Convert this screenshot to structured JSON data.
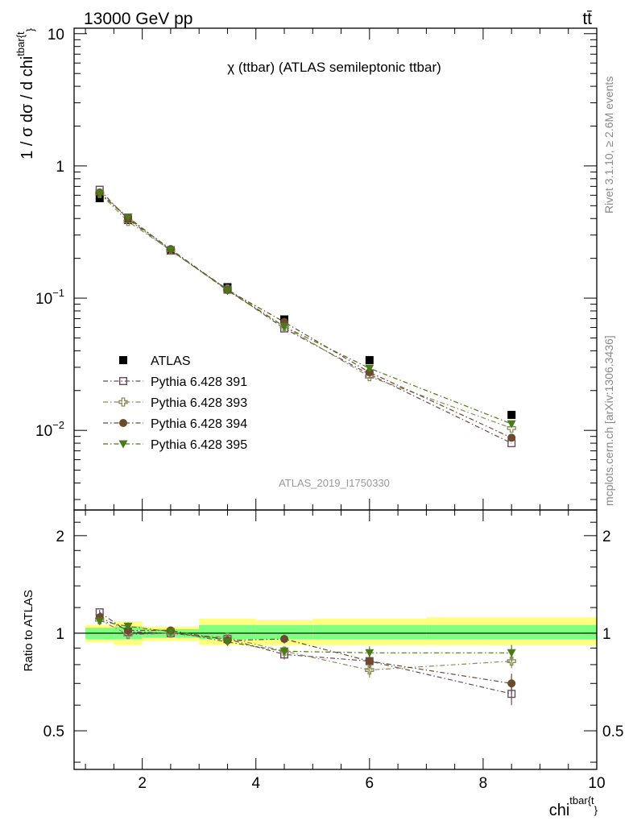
{
  "header": {
    "energy_label": "13000 GeV pp",
    "process_label": "tt̄",
    "plot_title": "χ (ttbar) (ATLAS semileptonic ttbar)",
    "analysis_id": "ATLAS_2019_I1750330",
    "rivet_label": "Rivet 3.1.10, ≥ 2.6M events",
    "mcplots_label": "mcplots.cern.ch [arXiv:1306.3436]"
  },
  "chart_data": {
    "type": "scatter",
    "x": [
      1.25,
      1.75,
      2.5,
      3.5,
      4.5,
      6.0,
      8.5
    ],
    "x_edges": [
      1,
      1.5,
      2,
      3,
      4,
      5,
      7,
      10
    ],
    "xlim": [
      0.8,
      10
    ],
    "xlabel_main": "chi",
    "xlabel_sup": "tbar{t",
    "xlabel_sub": "}",
    "x_ticks": [
      2,
      4,
      6,
      8,
      10
    ],
    "ylabel_main": "1 / σ dσ / d chi",
    "ylabel_sup": "tbar{t",
    "ylabel_sub": "}",
    "log_y": true,
    "ylim": [
      0.0025,
      11
    ],
    "y_tick_labels": [
      {
        "value": 10,
        "base": "10",
        "exp": ""
      },
      {
        "value": 1,
        "base": "1",
        "exp": ""
      },
      {
        "value": 0.1,
        "base": "10",
        "exp": "−1"
      },
      {
        "value": 0.01,
        "base": "10",
        "exp": "−2"
      }
    ],
    "legend_position": "middle-left",
    "series": [
      {
        "name": "ATLAS",
        "color": "#000000",
        "marker": "square-filled",
        "line": "none",
        "values": [
          0.57,
          0.39,
          0.23,
          0.121,
          0.069,
          0.034,
          0.0131
        ]
      },
      {
        "name": "Pythia 6.428 391",
        "color": "#6b4a5e",
        "marker": "square-open",
        "line": "dashdot",
        "values": [
          0.66,
          0.395,
          0.229,
          0.116,
          0.059,
          0.0265,
          0.008
        ]
      },
      {
        "name": "Pythia 6.428 393",
        "color": "#8c8c5a",
        "marker": "cross-open",
        "line": "dashdot",
        "values": [
          0.62,
          0.38,
          0.23,
          0.117,
          0.061,
          0.0255,
          0.0104
        ]
      },
      {
        "name": "Pythia 6.428 394",
        "color": "#6b4a2e",
        "marker": "circle-filled",
        "line": "dashdot",
        "values": [
          0.63,
          0.4,
          0.235,
          0.115,
          0.066,
          0.0275,
          0.0088
        ]
      },
      {
        "name": "Pythia 6.428 395",
        "color": "#4a7a1a",
        "marker": "triangle-down-filled",
        "line": "dashdot",
        "values": [
          0.62,
          0.41,
          0.232,
          0.114,
          0.061,
          0.0295,
          0.0112
        ]
      }
    ],
    "ratio": {
      "ylabel": "Ratio to ATLAS",
      "log_y": true,
      "ylim": [
        0.38,
        2.4
      ],
      "y_tick_labels": [
        {
          "value": 2,
          "label": "2"
        },
        {
          "value": 1,
          "label": "1"
        },
        {
          "value": 0.5,
          "label": "0.5"
        }
      ],
      "band_inner": [
        [
          0.96,
          1.04
        ],
        [
          0.96,
          1.05
        ],
        [
          0.97,
          1.03
        ],
        [
          0.96,
          1.06
        ],
        [
          0.96,
          1.06
        ],
        [
          0.96,
          1.06
        ],
        [
          0.96,
          1.06
        ]
      ],
      "band_outer": [
        [
          0.94,
          1.06
        ],
        [
          0.92,
          1.09
        ],
        [
          0.95,
          1.05
        ],
        [
          0.92,
          1.11
        ],
        [
          0.92,
          1.1
        ],
        [
          0.92,
          1.11
        ],
        [
          0.92,
          1.12
        ]
      ],
      "series": [
        {
          "values": [
            1.16,
            1.01,
            1.0,
            0.96,
            0.86,
            0.82,
            0.65
          ],
          "err": [
            0.02,
            0.03,
            0.02,
            0.02,
            0.03,
            0.04,
            0.05
          ]
        },
        {
          "values": [
            1.1,
            0.99,
            1.0,
            0.97,
            0.88,
            0.77,
            0.82
          ],
          "err": [
            0.02,
            0.03,
            0.02,
            0.02,
            0.03,
            0.04,
            0.04
          ]
        },
        {
          "values": [
            1.12,
            1.02,
            1.02,
            0.95,
            0.96,
            0.82,
            0.7
          ],
          "err": [
            0.02,
            0.03,
            0.02,
            0.02,
            0.03,
            0.04,
            0.05
          ]
        },
        {
          "values": [
            1.09,
            1.05,
            1.01,
            0.94,
            0.88,
            0.87,
            0.87
          ],
          "err": [
            0.02,
            0.03,
            0.02,
            0.02,
            0.03,
            0.04,
            0.05
          ]
        }
      ]
    }
  }
}
